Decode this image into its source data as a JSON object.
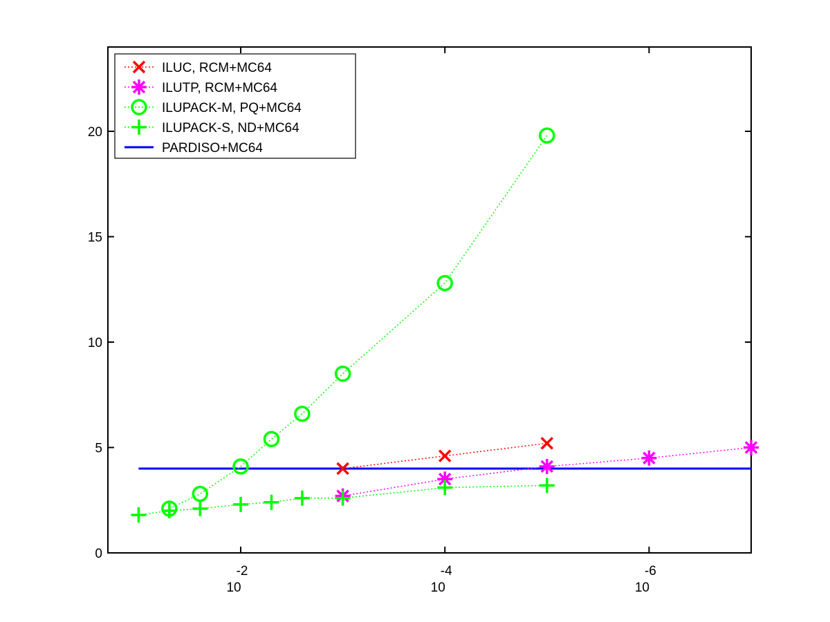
{
  "chart_data": {
    "type": "line",
    "x_scale": "log",
    "x_reversed": true,
    "xlim": [
      0.2,
      1e-07
    ],
    "ylim": [
      0,
      24
    ],
    "xticks": [
      {
        "value": 0.01,
        "base": "10",
        "exp": "-2"
      },
      {
        "value": 0.0001,
        "base": "10",
        "exp": "-4"
      },
      {
        "value": 1e-06,
        "base": "10",
        "exp": "-6"
      }
    ],
    "yticks": [
      {
        "value": 0,
        "label": "0"
      },
      {
        "value": 5,
        "label": "5"
      },
      {
        "value": 10,
        "label": "10"
      },
      {
        "value": 15,
        "label": "15"
      },
      {
        "value": 20,
        "label": "20"
      }
    ],
    "grid": false,
    "legend_position": "top-left",
    "series": [
      {
        "name": "ILUC, RCM+MC64",
        "color": "#ff0000",
        "marker": "x",
        "line": "dotted",
        "points": [
          [
            0.001,
            4.0
          ],
          [
            0.0001,
            4.6
          ],
          [
            1e-05,
            5.2
          ]
        ]
      },
      {
        "name": "ILUTP, RCM+MC64",
        "color": "#ff00ff",
        "marker": "star",
        "line": "dotted",
        "points": [
          [
            0.001,
            2.7
          ],
          [
            0.0001,
            3.5
          ],
          [
            1e-05,
            4.1
          ],
          [
            1e-06,
            4.5
          ],
          [
            1e-07,
            5.0
          ]
        ]
      },
      {
        "name": "ILUPACK-M, PQ+MC64",
        "color": "#00ff00",
        "marker": "circle",
        "line": "dotted",
        "points": [
          [
            0.05,
            2.1
          ],
          [
            0.025,
            2.8
          ],
          [
            0.01,
            4.1
          ],
          [
            0.005,
            5.4
          ],
          [
            0.0025,
            6.6
          ],
          [
            0.001,
            8.5
          ],
          [
            0.0001,
            12.8
          ],
          [
            1e-05,
            19.8
          ]
        ]
      },
      {
        "name": "ILUPACK-S, ND+MC64",
        "color": "#00ff00",
        "marker": "plus",
        "line": "dotted",
        "points": [
          [
            0.1,
            1.8
          ],
          [
            0.05,
            2.0
          ],
          [
            0.025,
            2.1
          ],
          [
            0.01,
            2.3
          ],
          [
            0.005,
            2.4
          ],
          [
            0.0025,
            2.6
          ],
          [
            0.001,
            2.6
          ],
          [
            0.0001,
            3.1
          ],
          [
            1e-05,
            3.2
          ]
        ]
      },
      {
        "name": "PARDISO+MC64",
        "color": "#0000ff",
        "marker": "none",
        "line": "solid",
        "points": [
          [
            0.1,
            4.0
          ],
          [
            1e-07,
            4.0
          ]
        ]
      }
    ]
  }
}
